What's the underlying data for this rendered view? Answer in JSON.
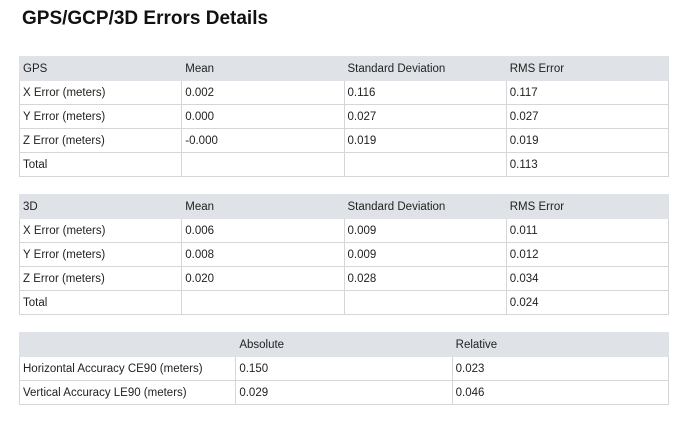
{
  "title": "GPS/GCP/3D Errors Details",
  "gps_table": {
    "header": [
      "GPS",
      "Mean",
      "Standard Deviation",
      "RMS Error"
    ],
    "rows": [
      [
        "X Error (meters)",
        "0.002",
        "0.116",
        "0.117"
      ],
      [
        "Y Error (meters)",
        "0.000",
        "0.027",
        "0.027"
      ],
      [
        "Z Error (meters)",
        "-0.000",
        "0.019",
        "0.019"
      ]
    ],
    "total": {
      "label": "Total",
      "rms": "0.113"
    }
  },
  "d3_table": {
    "header": [
      "3D",
      "Mean",
      "Standard Deviation",
      "RMS Error"
    ],
    "rows": [
      [
        "X Error (meters)",
        "0.006",
        "0.009",
        "0.011"
      ],
      [
        "Y Error (meters)",
        "0.008",
        "0.009",
        "0.012"
      ],
      [
        "Z Error (meters)",
        "0.020",
        "0.028",
        "0.034"
      ]
    ],
    "total": {
      "label": "Total",
      "rms": "0.024"
    }
  },
  "accuracy_table": {
    "header": [
      "Absolute",
      "Relative"
    ],
    "rows": [
      [
        "Horizontal Accuracy CE90 (meters)",
        "0.150",
        "0.023"
      ],
      [
        "Vertical Accuracy LE90 (meters)",
        "0.029",
        "0.046"
      ]
    ]
  }
}
